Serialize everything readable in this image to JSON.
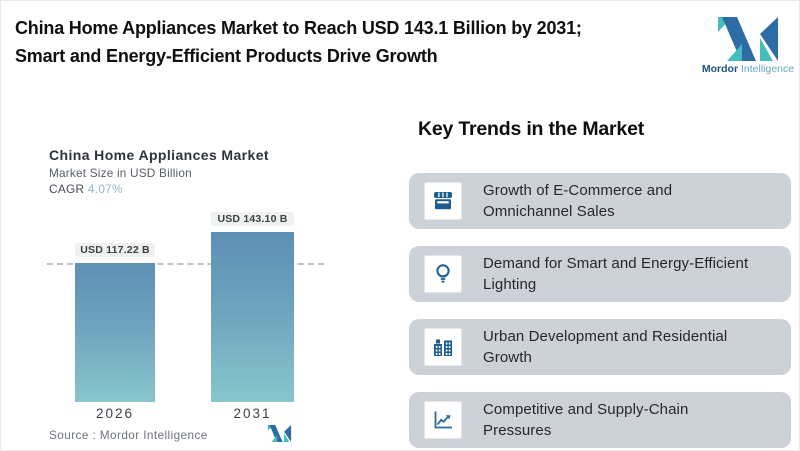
{
  "header": {
    "title": "China Home Appliances Market to Reach USD 143.1 Billion by 2031; Smart and Energy-Efficient Products Drive Growth"
  },
  "brand": {
    "name_bold": "Mordor",
    "name_light": "Intelligence"
  },
  "chart_data": {
    "type": "bar",
    "title": "China Home Appliances Market",
    "subtitle": "Market Size in USD Billion",
    "cagr_label": "CAGR",
    "cagr_value": "4.07%",
    "categories": [
      "2026",
      "2031"
    ],
    "values": [
      117.22,
      143.1
    ],
    "value_labels": [
      "USD 117.22 B",
      "USD 143.10 B"
    ],
    "unit": "USD Billion",
    "reference_line_value": 117.22,
    "source": "Source :  Mordor Intelligence",
    "legend": "none",
    "grid": "off"
  },
  "trends": {
    "heading": "Key Trends in the Market",
    "items": [
      {
        "icon": "storefront-icon",
        "line1": "Growth of E-Commerce and",
        "line2": "Omnichannel Sales"
      },
      {
        "icon": "lightbulb-icon",
        "line1": "Demand for Smart and Energy-Efficient",
        "line2": "Lighting"
      },
      {
        "icon": "buildings-icon",
        "line1": "Urban Development and Residential",
        "line2": "Growth"
      },
      {
        "icon": "line-chart-icon",
        "line1": "Competitive and Supply-Chain",
        "line2": "Pressures"
      }
    ]
  },
  "colors": {
    "bar_gradient_top": "#5e90b5",
    "bar_gradient_bottom": "#88c6cc",
    "dashed_line": "#bcc3c9",
    "card_background": "#cdd2d9",
    "icon_blue": "#1d5e8f",
    "logo_blue": "#2d6da5",
    "logo_teal": "#45bdbf",
    "cagr_value_text": "#91b8d4"
  }
}
